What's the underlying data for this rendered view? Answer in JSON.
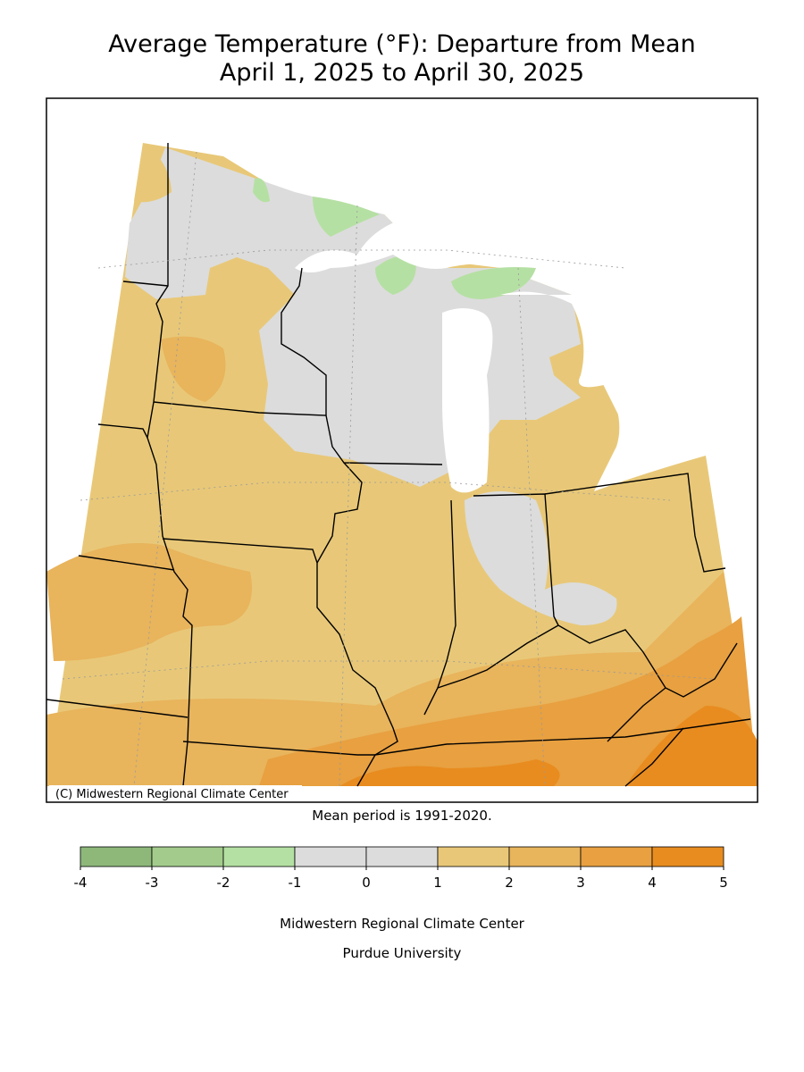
{
  "map": {
    "title": [
      "Average Temperature (°F): Departure from Mean",
      "April 1, 2025 to April 30, 2025"
    ],
    "credit": "(C) Midwestern Regional Climate Center",
    "note": "Mean period is 1991-2020.",
    "legend": {
      "bounds": [
        -4,
        -3,
        -2,
        -1,
        0,
        1,
        2,
        3,
        4,
        5
      ],
      "colors": [
        "#8db87a",
        "#a3cc8c",
        "#b5e0a3",
        "#dcdcdc",
        "#dcdcdc",
        "#e8c878",
        "#e8b45c",
        "#e8a040",
        "#e88c20"
      ]
    },
    "footer": [
      "Midwestern Regional Climate Center",
      "Purdue University"
    ]
  }
}
